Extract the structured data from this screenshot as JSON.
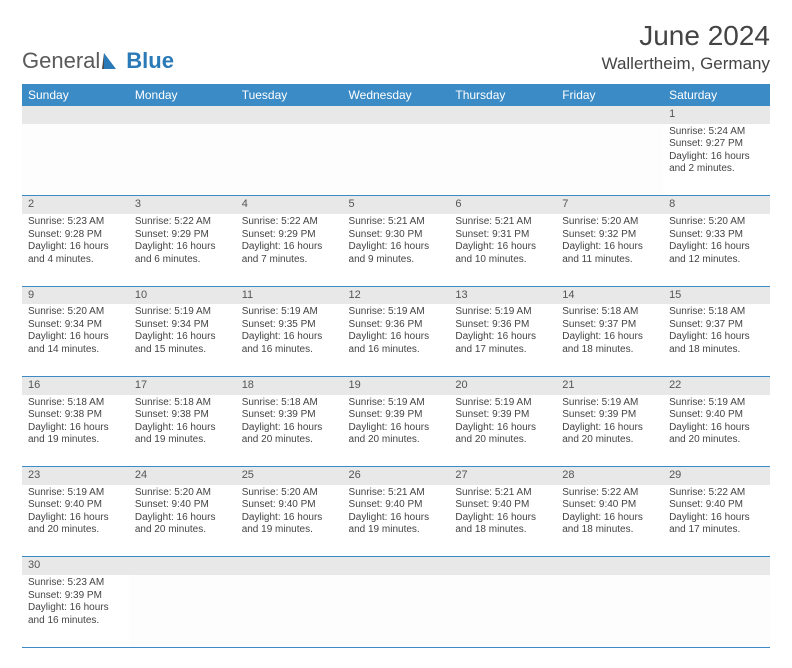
{
  "brand": {
    "part1": "General",
    "part2": "Blue"
  },
  "title": "June 2024",
  "location": "Wallertheim, Germany",
  "colors": {
    "header_bg": "#3b8bc6",
    "header_text": "#ffffff",
    "daynum_bg": "#e8e8e8",
    "border": "#3b8bc6",
    "logo_gray": "#5a5a5a",
    "logo_blue": "#2b7ab8"
  },
  "weekdays": [
    "Sunday",
    "Monday",
    "Tuesday",
    "Wednesday",
    "Thursday",
    "Friday",
    "Saturday"
  ],
  "first_weekday_index": 6,
  "days": [
    {
      "n": 1,
      "sunrise": "5:24 AM",
      "sunset": "9:27 PM",
      "daylight": "16 hours and 2 minutes."
    },
    {
      "n": 2,
      "sunrise": "5:23 AM",
      "sunset": "9:28 PM",
      "daylight": "16 hours and 4 minutes."
    },
    {
      "n": 3,
      "sunrise": "5:22 AM",
      "sunset": "9:29 PM",
      "daylight": "16 hours and 6 minutes."
    },
    {
      "n": 4,
      "sunrise": "5:22 AM",
      "sunset": "9:29 PM",
      "daylight": "16 hours and 7 minutes."
    },
    {
      "n": 5,
      "sunrise": "5:21 AM",
      "sunset": "9:30 PM",
      "daylight": "16 hours and 9 minutes."
    },
    {
      "n": 6,
      "sunrise": "5:21 AM",
      "sunset": "9:31 PM",
      "daylight": "16 hours and 10 minutes."
    },
    {
      "n": 7,
      "sunrise": "5:20 AM",
      "sunset": "9:32 PM",
      "daylight": "16 hours and 11 minutes."
    },
    {
      "n": 8,
      "sunrise": "5:20 AM",
      "sunset": "9:33 PM",
      "daylight": "16 hours and 12 minutes."
    },
    {
      "n": 9,
      "sunrise": "5:20 AM",
      "sunset": "9:34 PM",
      "daylight": "16 hours and 14 minutes."
    },
    {
      "n": 10,
      "sunrise": "5:19 AM",
      "sunset": "9:34 PM",
      "daylight": "16 hours and 15 minutes."
    },
    {
      "n": 11,
      "sunrise": "5:19 AM",
      "sunset": "9:35 PM",
      "daylight": "16 hours and 16 minutes."
    },
    {
      "n": 12,
      "sunrise": "5:19 AM",
      "sunset": "9:36 PM",
      "daylight": "16 hours and 16 minutes."
    },
    {
      "n": 13,
      "sunrise": "5:19 AM",
      "sunset": "9:36 PM",
      "daylight": "16 hours and 17 minutes."
    },
    {
      "n": 14,
      "sunrise": "5:18 AM",
      "sunset": "9:37 PM",
      "daylight": "16 hours and 18 minutes."
    },
    {
      "n": 15,
      "sunrise": "5:18 AM",
      "sunset": "9:37 PM",
      "daylight": "16 hours and 18 minutes."
    },
    {
      "n": 16,
      "sunrise": "5:18 AM",
      "sunset": "9:38 PM",
      "daylight": "16 hours and 19 minutes."
    },
    {
      "n": 17,
      "sunrise": "5:18 AM",
      "sunset": "9:38 PM",
      "daylight": "16 hours and 19 minutes."
    },
    {
      "n": 18,
      "sunrise": "5:18 AM",
      "sunset": "9:39 PM",
      "daylight": "16 hours and 20 minutes."
    },
    {
      "n": 19,
      "sunrise": "5:19 AM",
      "sunset": "9:39 PM",
      "daylight": "16 hours and 20 minutes."
    },
    {
      "n": 20,
      "sunrise": "5:19 AM",
      "sunset": "9:39 PM",
      "daylight": "16 hours and 20 minutes."
    },
    {
      "n": 21,
      "sunrise": "5:19 AM",
      "sunset": "9:39 PM",
      "daylight": "16 hours and 20 minutes."
    },
    {
      "n": 22,
      "sunrise": "5:19 AM",
      "sunset": "9:40 PM",
      "daylight": "16 hours and 20 minutes."
    },
    {
      "n": 23,
      "sunrise": "5:19 AM",
      "sunset": "9:40 PM",
      "daylight": "16 hours and 20 minutes."
    },
    {
      "n": 24,
      "sunrise": "5:20 AM",
      "sunset": "9:40 PM",
      "daylight": "16 hours and 20 minutes."
    },
    {
      "n": 25,
      "sunrise": "5:20 AM",
      "sunset": "9:40 PM",
      "daylight": "16 hours and 19 minutes."
    },
    {
      "n": 26,
      "sunrise": "5:21 AM",
      "sunset": "9:40 PM",
      "daylight": "16 hours and 19 minutes."
    },
    {
      "n": 27,
      "sunrise": "5:21 AM",
      "sunset": "9:40 PM",
      "daylight": "16 hours and 18 minutes."
    },
    {
      "n": 28,
      "sunrise": "5:22 AM",
      "sunset": "9:40 PM",
      "daylight": "16 hours and 18 minutes."
    },
    {
      "n": 29,
      "sunrise": "5:22 AM",
      "sunset": "9:40 PM",
      "daylight": "16 hours and 17 minutes."
    },
    {
      "n": 30,
      "sunrise": "5:23 AM",
      "sunset": "9:39 PM",
      "daylight": "16 hours and 16 minutes."
    }
  ],
  "labels": {
    "sunrise": "Sunrise:",
    "sunset": "Sunset:",
    "daylight": "Daylight:"
  }
}
